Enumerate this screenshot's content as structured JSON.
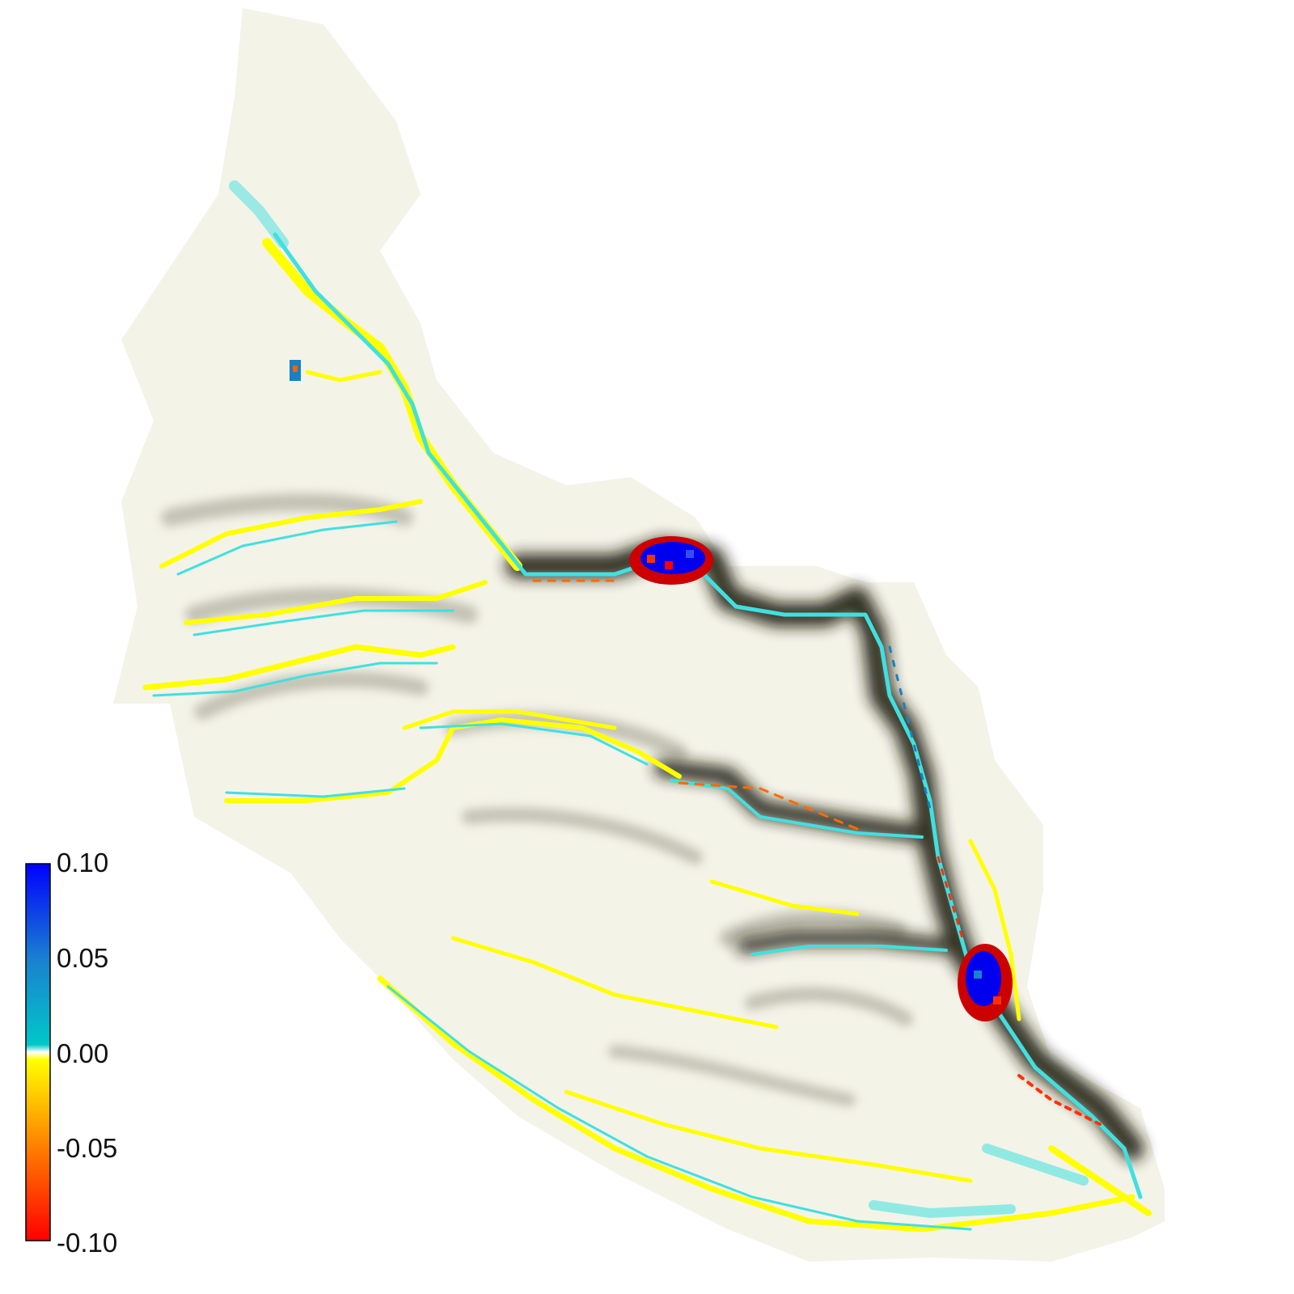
{
  "colorbar": {
    "ticks": [
      "0.10",
      "0.05",
      "0.00",
      "-0.05",
      "-0.10"
    ],
    "max": 0.1,
    "min": -0.1,
    "colors": [
      "#0000ff",
      "#1aa0e0",
      "#00c8c8",
      "#ffff00",
      "#ff8000",
      "#ff0000"
    ]
  },
  "map": {
    "background": "#ffffff",
    "hillshade_color": "#1a1a10",
    "deposition_color": "#ffff00",
    "erosion_color": "#40e0e0"
  }
}
